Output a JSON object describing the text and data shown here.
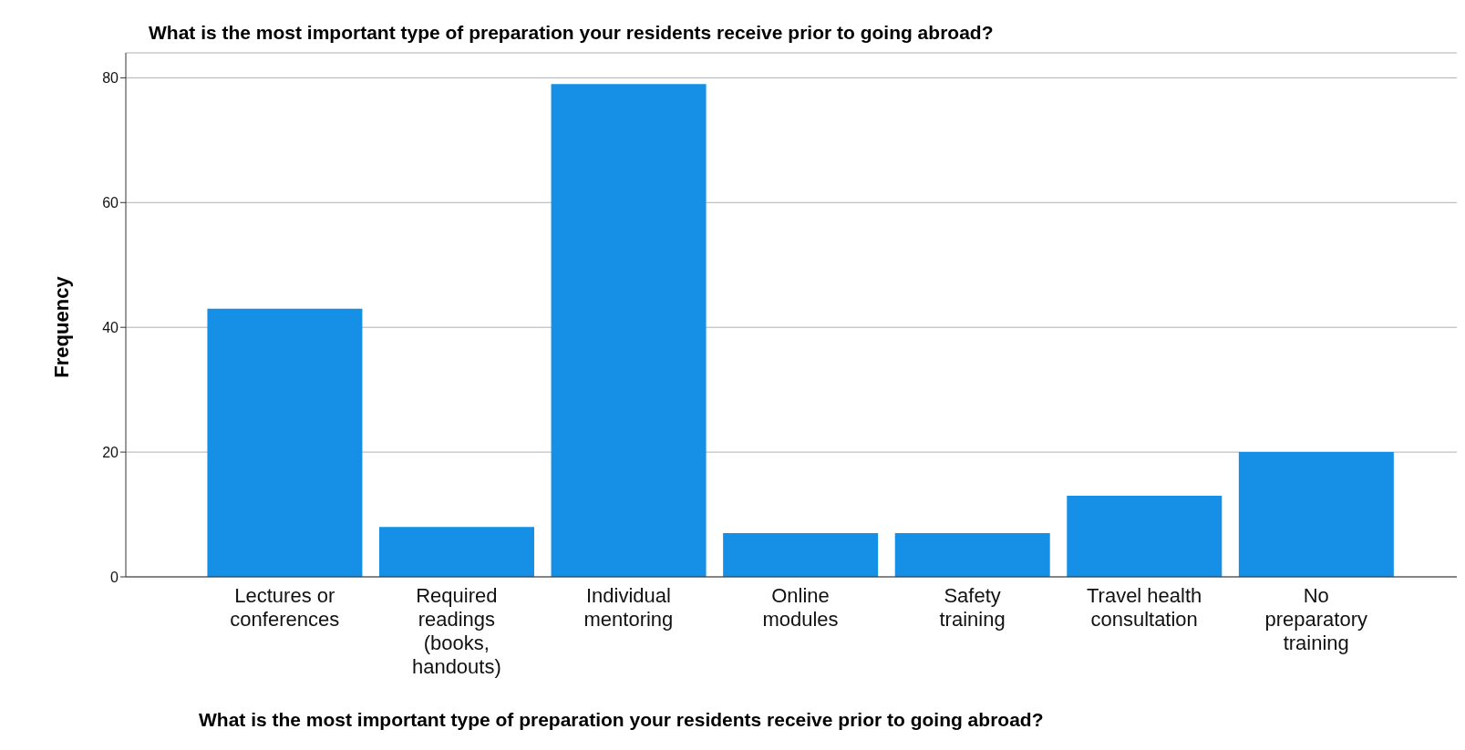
{
  "chart_data": {
    "type": "bar",
    "title": "What is the most important type of preparation your residents receive prior to going abroad?",
    "xlabel": "What is the most important type of preparation your residents receive prior to going abroad?",
    "ylabel": "Frequency",
    "categories": [
      "Lectures or conferences",
      "Required readings (books, handouts)",
      "Individual mentoring",
      "Online modules",
      "Safety training",
      "Travel health consultation",
      "No preparatory training"
    ],
    "values": [
      43,
      8,
      79,
      7,
      7,
      13,
      20
    ],
    "color": "#1590e6",
    "ylim": [
      0,
      84
    ],
    "yticks": [
      0,
      20,
      40,
      60,
      80
    ],
    "grid": "y"
  }
}
